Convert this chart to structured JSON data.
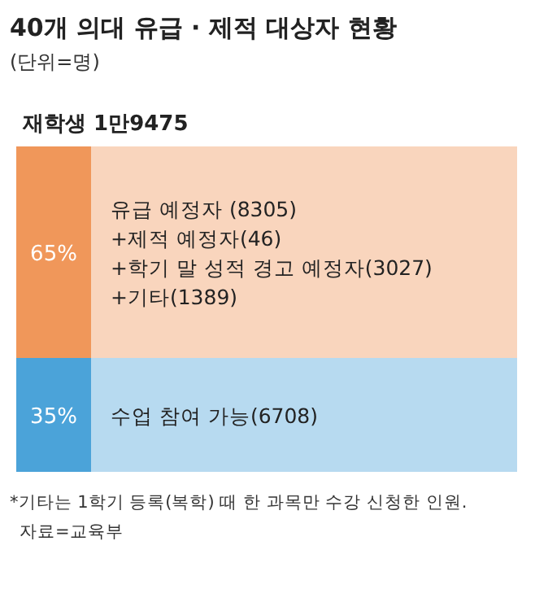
{
  "chart_data": {
    "type": "bar",
    "stacked": true,
    "title": "40개 의대 유급 · 제적 대상자 현황",
    "subtitle": "(단위=명)",
    "categories": [
      null
    ],
    "series": [
      {
        "color": "#4ba3d9",
        "values": [
          35
        ],
        "value_labels": [
          "35%"
        ]
      },
      {
        "color": "#f0975a",
        "values": [
          65
        ],
        "value_labels": [
          "65%"
        ]
      }
    ],
    "annotations": [
      "재학생 1만9475",
      "수업 참여 가능(6708)",
      "유급 예정자 (8305)\n+제적 예정자(46)\n+학기 말 성적 경고 예정자(3027)\n+기타(1389)",
      "*기타는 1학기 등록(복학) 때 한 과목만 수강 신청한 인원.",
      "자료=교육부"
    ]
  }
}
